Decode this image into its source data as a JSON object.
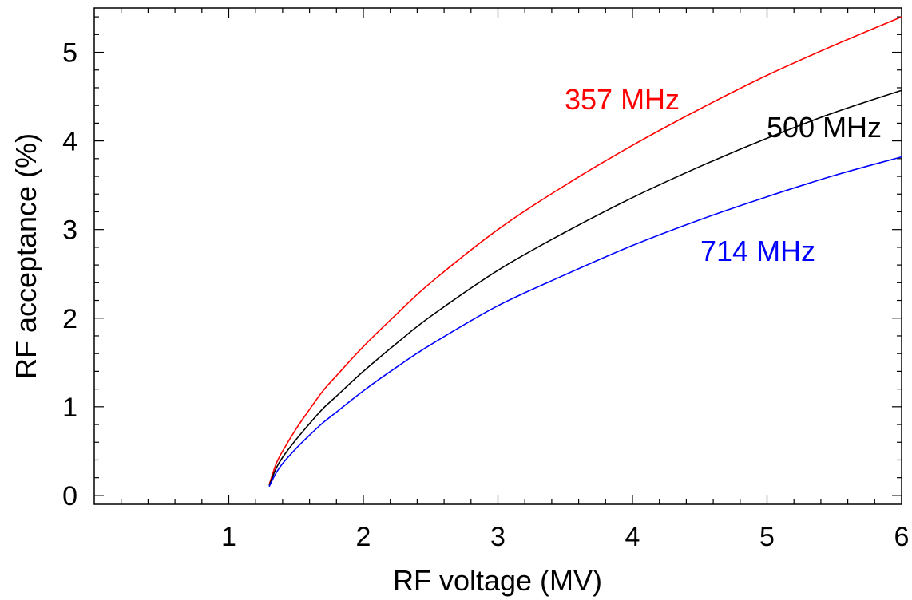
{
  "chart_data": {
    "type": "line",
    "xlabel": "RF voltage (MV)",
    "ylabel": "RF acceptance (%)",
    "xlim": [
      0,
      6
    ],
    "ylim": [
      -0.1,
      5.5
    ],
    "xticks": [
      1,
      2,
      3,
      4,
      5,
      6
    ],
    "yticks": [
      0,
      1,
      2,
      3,
      4,
      5
    ],
    "grid": false,
    "legend": "inline labels",
    "series": [
      {
        "name": "357 MHz",
        "color": "#ff0000",
        "x": [
          1.3,
          1.35,
          1.4,
          1.5,
          1.6,
          1.7,
          1.8,
          2.0,
          2.25,
          2.5,
          3.0,
          3.5,
          4.0,
          4.5,
          5.0,
          5.5,
          6.0
        ],
        "y": [
          0.12,
          0.35,
          0.5,
          0.75,
          0.97,
          1.18,
          1.35,
          1.68,
          2.05,
          2.4,
          3.0,
          3.5,
          3.95,
          4.36,
          4.74,
          5.08,
          5.4
        ]
      },
      {
        "name": "500 MHz",
        "color": "#000000",
        "x": [
          1.3,
          1.35,
          1.4,
          1.5,
          1.6,
          1.7,
          1.8,
          2.0,
          2.25,
          2.5,
          3.0,
          3.5,
          4.0,
          4.5,
          5.0,
          5.5,
          6.0
        ],
        "y": [
          0.11,
          0.3,
          0.43,
          0.63,
          0.81,
          0.98,
          1.12,
          1.4,
          1.72,
          2.02,
          2.54,
          2.97,
          3.36,
          3.71,
          4.03,
          4.32,
          4.57
        ]
      },
      {
        "name": "714 MHz",
        "color": "#0000ff",
        "x": [
          1.3,
          1.35,
          1.4,
          1.5,
          1.6,
          1.7,
          1.8,
          2.0,
          2.25,
          2.5,
          3.0,
          3.5,
          4.0,
          4.5,
          5.0,
          5.5,
          6.0
        ],
        "y": [
          0.1,
          0.25,
          0.36,
          0.53,
          0.68,
          0.82,
          0.94,
          1.18,
          1.45,
          1.7,
          2.14,
          2.49,
          2.82,
          3.11,
          3.37,
          3.61,
          3.82
        ]
      }
    ]
  }
}
